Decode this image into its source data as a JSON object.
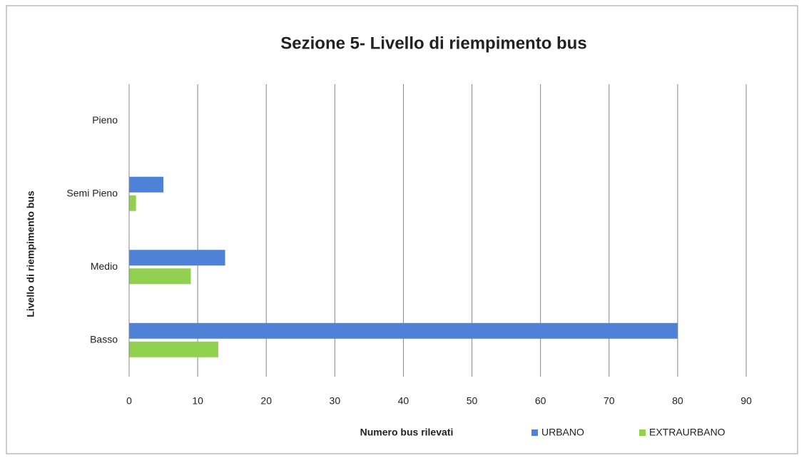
{
  "chart_data": {
    "type": "bar",
    "orientation": "horizontal",
    "title": "Sezione 5- Livello di  riempimento bus",
    "x_label": "Numero bus rilevati",
    "y_label": "Livello di riempimento bus",
    "categories": [
      "Basso",
      "Medio",
      "Semi Pieno",
      "Pieno"
    ],
    "series": [
      {
        "name": "URBANO",
        "color": "#4f81d6",
        "values": [
          80,
          14,
          5,
          0
        ]
      },
      {
        "name": "EXTRAURBANO",
        "color": "#92d050",
        "values": [
          13,
          9,
          1,
          0
        ]
      }
    ],
    "xlim": [
      0,
      90
    ],
    "xticks": [
      0,
      10,
      20,
      30,
      40,
      50,
      60,
      70,
      80,
      90
    ],
    "grid": true,
    "legend": "bottom"
  }
}
